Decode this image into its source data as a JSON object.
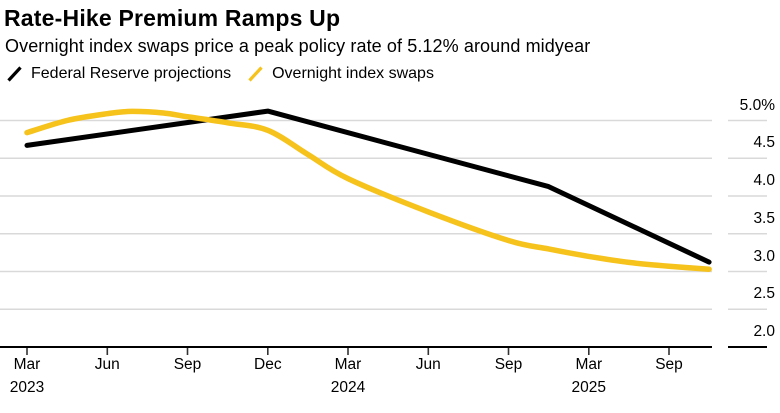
{
  "header": {
    "title": "Rate-Hike Premium Ramps Up",
    "subtitle": "Overnight index swaps price a peak policy rate of 5.12% around midyear"
  },
  "legend": [
    {
      "label": "Federal Reserve projections",
      "color": "#000000"
    },
    {
      "label": "Overnight index swaps",
      "color": "#f6c21c"
    }
  ],
  "colors": {
    "background": "#ffffff",
    "gridline": "#d9d9d9",
    "axis": "#000000",
    "tick": "#333333",
    "text": "#000000"
  },
  "chart_data": {
    "type": "line",
    "title": "Rate-Hike Premium Ramps Up",
    "subtitle": "Overnight index swaps price a peak policy rate of 5.12% around midyear",
    "unit": "%",
    "legend_position": "top-left",
    "grid": true,
    "y_axis": {
      "side": "right",
      "tick_labels": [
        "5.0%",
        "4.5",
        "4.0",
        "3.5",
        "3.0",
        "2.5",
        "2.0"
      ],
      "tick_values": [
        5.0,
        4.5,
        4.0,
        3.5,
        3.0,
        2.5,
        2.0
      ],
      "range": [
        2.0,
        5.0
      ]
    },
    "x_axis": {
      "ticks": [
        {
          "label": "Mar",
          "year": "2023"
        },
        {
          "label": "Jun"
        },
        {
          "label": "Sep"
        },
        {
          "label": "Dec"
        },
        {
          "label": "Mar",
          "year": "2024"
        },
        {
          "label": "Jun"
        },
        {
          "label": "Sep"
        },
        {
          "label": "Mar",
          "year": "2025"
        },
        {
          "label": "Sep"
        }
      ],
      "note": "tick positions evenly spaced; t is position in tick units from Mar 2023"
    },
    "series": [
      {
        "name": "Federal Reserve projections",
        "color": "#000000",
        "smooth": false,
        "points": [
          {
            "date": "Mar 2023",
            "t": 0,
            "v": 4.67
          },
          {
            "date": "Dec 2023",
            "t": 3,
            "v": 5.125
          },
          {
            "date": "Dec 2024",
            "t": 6.5,
            "v": 4.125
          },
          {
            "date": "Dec 2025",
            "t": 8.5,
            "v": 3.125
          }
        ]
      },
      {
        "name": "Overnight index swaps",
        "color": "#f6c21c",
        "smooth": true,
        "points": [
          {
            "date": "Mar 2023",
            "t": 0,
            "v": 4.84
          },
          {
            "date": "May 2023",
            "t": 0.5,
            "v": 5.0
          },
          {
            "date": "Jun 2023",
            "t": 1,
            "v": 5.09
          },
          {
            "date": "Jul 2023",
            "t": 1.3,
            "v": 5.12
          },
          {
            "date": "Aug 2023",
            "t": 1.7,
            "v": 5.1
          },
          {
            "date": "Sep 2023",
            "t": 2,
            "v": 5.05
          },
          {
            "date": "Nov 2023",
            "t": 2.5,
            "v": 4.97
          },
          {
            "date": "Dec 2023",
            "t": 3,
            "v": 4.87
          },
          {
            "date": "Feb 2024",
            "t": 3.5,
            "v": 4.55
          },
          {
            "date": "Mar 2024",
            "t": 4,
            "v": 4.23
          },
          {
            "date": "Jun 2024",
            "t": 5,
            "v": 3.79
          },
          {
            "date": "Sep 2024",
            "t": 6,
            "v": 3.41
          },
          {
            "date": "Dec 2024",
            "t": 6.5,
            "v": 3.3
          },
          {
            "date": "Mar 2025",
            "t": 7,
            "v": 3.2
          },
          {
            "date": "Jun 2025",
            "t": 7.5,
            "v": 3.12
          },
          {
            "date": "Sep 2025",
            "t": 8,
            "v": 3.07
          },
          {
            "date": "Dec 2025",
            "t": 8.5,
            "v": 3.03
          }
        ]
      }
    ]
  }
}
